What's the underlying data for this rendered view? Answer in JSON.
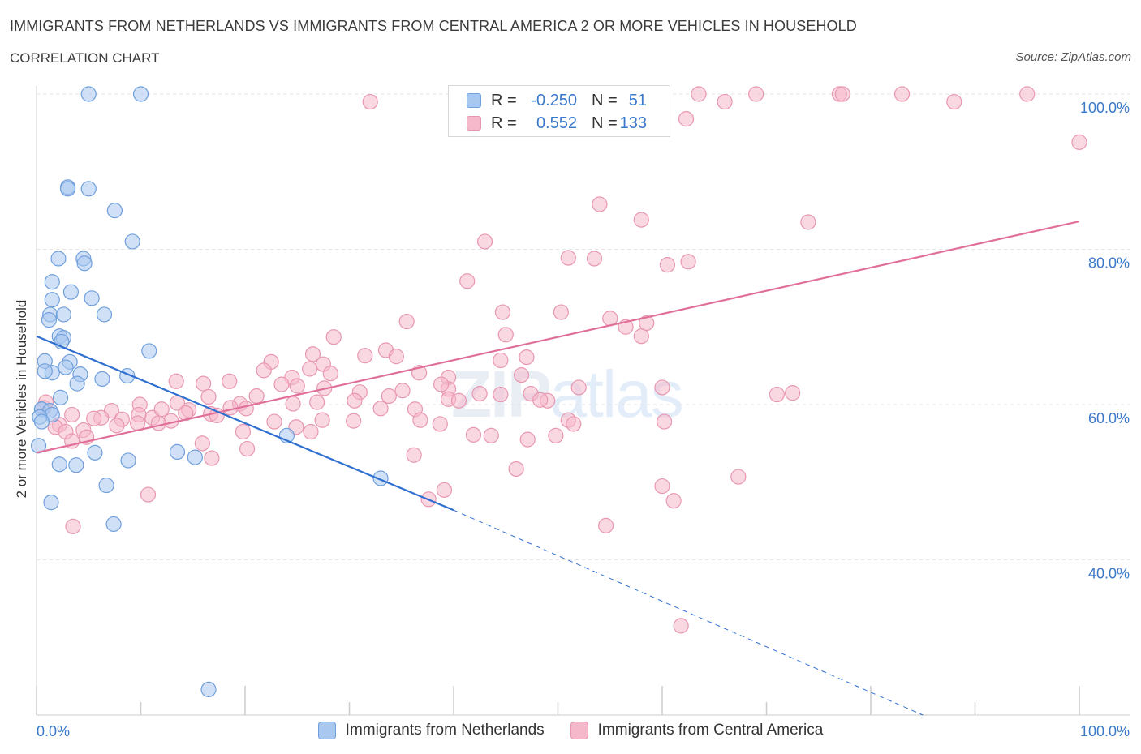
{
  "header": {
    "title": "IMMIGRANTS FROM NETHERLANDS VS IMMIGRANTS FROM CENTRAL AMERICA 2 OR MORE VEHICLES IN HOUSEHOLD",
    "subtitle": "CORRELATION CHART",
    "source": "Source: ZipAtlas.com"
  },
  "watermark": {
    "zip": "ZIP",
    "atlas": "atlas"
  },
  "legend_top": {
    "rows": [
      {
        "r_label": "R =",
        "r_value": "-0.250",
        "n_label": "N =",
        "n_value": "51"
      },
      {
        "r_label": "R =",
        "r_value": "0.552",
        "n_label": "N =",
        "n_value": "133"
      }
    ]
  },
  "legend_bottom": {
    "items": [
      {
        "label": "Immigrants from Netherlands"
      },
      {
        "label": "Immigrants from Central America"
      }
    ]
  },
  "colors": {
    "blue_fill": "#a9c8f0",
    "blue_stroke": "#6f9fdc",
    "blue_line": "#2f6fd0",
    "pink_fill": "#f5b8cb",
    "pink_stroke": "#e897b0",
    "pink_line": "#e0709a",
    "tick_text": "#3a78c8",
    "grid": "#e4e4e4"
  },
  "chart_data": {
    "type": "scatter",
    "title": "IMMIGRANTS FROM NETHERLANDS VS IMMIGRANTS FROM CENTRAL AMERICA 2 OR MORE VEHICLES IN HOUSEHOLD",
    "xlabel": "",
    "ylabel": "2 or more Vehicles in Household",
    "xlim": [
      0,
      100
    ],
    "ylim": [
      20,
      100
    ],
    "x_ticks": [
      "0.0%",
      "100.0%"
    ],
    "y_ticks": [
      {
        "value": 100,
        "label": "100.0%"
      },
      {
        "value": 80,
        "label": "80.0%"
      },
      {
        "value": 60,
        "label": "60.0%"
      },
      {
        "value": 40,
        "label": "40.0%"
      }
    ],
    "grid": true,
    "legend_position": "bottom",
    "series": [
      {
        "name": "Immigrants from Netherlands",
        "R": -0.25,
        "N": 51,
        "trend": {
          "x0": 0,
          "y0": 68.8,
          "x1": 40,
          "y1": 46.4,
          "dash_to_x": 85,
          "dash_to_y": 20
        },
        "points": [
          [
            5,
            100
          ],
          [
            10,
            100
          ],
          [
            3,
            88
          ],
          [
            3,
            87.8
          ],
          [
            5,
            87.8
          ],
          [
            7.5,
            85
          ],
          [
            9.2,
            81
          ],
          [
            2.1,
            78.8
          ],
          [
            4.5,
            78.8
          ],
          [
            4.6,
            78.2
          ],
          [
            1.5,
            75.8
          ],
          [
            3.3,
            74.5
          ],
          [
            5.3,
            73.7
          ],
          [
            1.5,
            73.5
          ],
          [
            1.3,
            71.6
          ],
          [
            2.6,
            71.6
          ],
          [
            6.5,
            71.6
          ],
          [
            1.2,
            70.9
          ],
          [
            2.2,
            68.8
          ],
          [
            2.6,
            68.6
          ],
          [
            2.4,
            68.1
          ],
          [
            10.8,
            66.9
          ],
          [
            0.8,
            65.6
          ],
          [
            3.2,
            65.5
          ],
          [
            1.5,
            64.1
          ],
          [
            2.8,
            64.8
          ],
          [
            0.8,
            64.3
          ],
          [
            4.2,
            63.9
          ],
          [
            8.7,
            63.7
          ],
          [
            6.3,
            63.3
          ],
          [
            3.9,
            62.7
          ],
          [
            2.3,
            60.9
          ],
          [
            0.5,
            59.4
          ],
          [
            0.5,
            59.4
          ],
          [
            1.3,
            59.2
          ],
          [
            1.5,
            58.7
          ],
          [
            0.3,
            58.4
          ],
          [
            0.5,
            57.8
          ],
          [
            0.2,
            54.7
          ],
          [
            5.6,
            53.8
          ],
          [
            13.5,
            53.9
          ],
          [
            15.2,
            53.2
          ],
          [
            8.8,
            52.8
          ],
          [
            2.2,
            52.3
          ],
          [
            3.8,
            52.2
          ],
          [
            6.7,
            49.6
          ],
          [
            1.4,
            47.4
          ],
          [
            7.4,
            44.6
          ],
          [
            24,
            56
          ],
          [
            33,
            50.5
          ],
          [
            16.5,
            23.3
          ]
        ]
      },
      {
        "name": "Immigrants from Central America",
        "R": 0.552,
        "N": 133,
        "trend": {
          "x0": 0,
          "y0": 53.8,
          "x1": 100,
          "y1": 83.6
        },
        "points": [
          [
            55.9,
            100
          ],
          [
            63.5,
            100
          ],
          [
            69,
            100
          ],
          [
            77,
            100
          ],
          [
            77.3,
            100
          ],
          [
            83,
            100
          ],
          [
            95,
            100
          ],
          [
            62.3,
            96.8
          ],
          [
            100,
            93.8
          ],
          [
            54,
            85.8
          ],
          [
            58,
            83.8
          ],
          [
            74,
            83.5
          ],
          [
            43,
            81
          ],
          [
            51,
            78.9
          ],
          [
            53.5,
            78.8
          ],
          [
            60.5,
            78
          ],
          [
            62.5,
            78.4
          ],
          [
            41.3,
            75.9
          ],
          [
            50.3,
            71.9
          ],
          [
            44.7,
            71.9
          ],
          [
            55,
            71.1
          ],
          [
            58.5,
            70.5
          ],
          [
            35.5,
            70.7
          ],
          [
            56.5,
            70
          ],
          [
            45,
            69
          ],
          [
            58,
            68.8
          ],
          [
            28.5,
            68.7
          ],
          [
            33.5,
            67
          ],
          [
            26.5,
            66.5
          ],
          [
            34.5,
            66.2
          ],
          [
            31.5,
            66.3
          ],
          [
            47,
            66.1
          ],
          [
            44.5,
            65.7
          ],
          [
            22.5,
            65.5
          ],
          [
            27.5,
            65.2
          ],
          [
            26.2,
            64.6
          ],
          [
            39.5,
            63.5
          ],
          [
            46.5,
            63.8
          ],
          [
            36.7,
            64.1
          ],
          [
            21.8,
            64.4
          ],
          [
            28.2,
            64
          ],
          [
            24.5,
            63.5
          ],
          [
            13.4,
            63
          ],
          [
            18.5,
            63
          ],
          [
            16,
            62.7
          ],
          [
            23.5,
            62.6
          ],
          [
            25,
            62.4
          ],
          [
            39.5,
            62
          ],
          [
            52,
            62.2
          ],
          [
            72.5,
            61.5
          ],
          [
            31,
            61.6
          ],
          [
            35.1,
            61.8
          ],
          [
            44.5,
            61.3
          ],
          [
            47.4,
            61.4
          ],
          [
            60,
            62.2
          ],
          [
            71,
            61.3
          ],
          [
            42.5,
            61.4
          ],
          [
            49,
            60.5
          ],
          [
            48.3,
            60.6
          ],
          [
            33.8,
            61.1
          ],
          [
            39.5,
            60.7
          ],
          [
            30.5,
            60.5
          ],
          [
            26.9,
            60.3
          ],
          [
            40.5,
            60.5
          ],
          [
            36.3,
            59.4
          ],
          [
            19.5,
            60.1
          ],
          [
            20.1,
            59.5
          ],
          [
            16.5,
            61
          ],
          [
            13.5,
            60.2
          ],
          [
            9.9,
            60
          ],
          [
            33,
            59.5
          ],
          [
            24.6,
            60.1
          ],
          [
            14.6,
            59.3
          ],
          [
            7.2,
            59.2
          ],
          [
            11.1,
            58.3
          ],
          [
            3.4,
            58.7
          ],
          [
            9.8,
            58.7
          ],
          [
            6.2,
            58.3
          ],
          [
            16.7,
            58.8
          ],
          [
            5.5,
            58.2
          ],
          [
            17.3,
            58.6
          ],
          [
            30.4,
            57.9
          ],
          [
            22.8,
            57.8
          ],
          [
            8.2,
            58.1
          ],
          [
            0.7,
            59.6
          ],
          [
            0.9,
            60.3
          ],
          [
            24.9,
            57.1
          ],
          [
            27.4,
            58
          ],
          [
            38.7,
            57.5
          ],
          [
            36.8,
            58
          ],
          [
            51,
            58
          ],
          [
            60.2,
            57.8
          ],
          [
            12.9,
            57.9
          ],
          [
            11.7,
            57.6
          ],
          [
            9.7,
            57.6
          ],
          [
            7.7,
            57.3
          ],
          [
            2.2,
            57.4
          ],
          [
            1.8,
            57.1
          ],
          [
            4.5,
            56.7
          ],
          [
            19.8,
            56.5
          ],
          [
            41.9,
            56.1
          ],
          [
            43.6,
            56
          ],
          [
            47.1,
            55.5
          ],
          [
            2.8,
            56.5
          ],
          [
            4.8,
            55.8
          ],
          [
            3.4,
            55.3
          ],
          [
            15.9,
            55
          ],
          [
            16.8,
            53.1
          ],
          [
            20.2,
            54.3
          ],
          [
            36.2,
            53.5
          ],
          [
            46,
            51.7
          ],
          [
            60,
            49.5
          ],
          [
            67.3,
            50.7
          ],
          [
            39.1,
            49
          ],
          [
            37.6,
            47.8
          ],
          [
            10.7,
            48.4
          ],
          [
            61.1,
            47.6
          ],
          [
            54.6,
            44.4
          ],
          [
            3.5,
            44.3
          ],
          [
            61.8,
            31.5
          ],
          [
            56,
            100
          ],
          [
            66,
            99
          ],
          [
            32,
            99
          ],
          [
            88,
            99
          ],
          [
            49.8,
            56
          ],
          [
            26.3,
            56.5
          ],
          [
            51.5,
            57.5
          ],
          [
            18.6,
            59.6
          ],
          [
            27.6,
            62.1
          ],
          [
            21.1,
            61.1
          ],
          [
            14.3,
            58.9
          ],
          [
            12,
            59.4
          ],
          [
            38.8,
            62.6
          ]
        ]
      }
    ]
  }
}
